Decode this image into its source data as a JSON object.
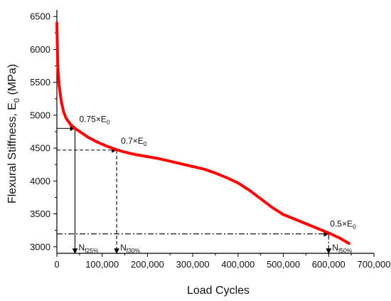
{
  "chart_data": {
    "type": "line",
    "title": "",
    "xlabel": "Load Cycles",
    "ylabel_main": "Flexural Stiffness, E",
    "ylabel_sub": "0",
    "ylabel_unit": " (MPa)",
    "xlim": [
      0,
      700000
    ],
    "ylim": [
      2900,
      6600
    ],
    "xticks": [
      0,
      100000,
      200000,
      300000,
      400000,
      500000,
      600000,
      700000
    ],
    "xtick_labels": [
      "0",
      "100,000",
      "200,000",
      "300,000",
      "400,000",
      "500,000",
      "600,000",
      "700,000"
    ],
    "yticks": [
      3000,
      3500,
      4000,
      4500,
      5000,
      5500,
      6000,
      6500
    ],
    "ytick_labels": [
      "3000",
      "3500",
      "4000",
      "4500",
      "5000",
      "5500",
      "6000",
      "6500"
    ],
    "grid": false,
    "series": [
      {
        "color": "#ff0000",
        "x": [
          0,
          2000,
          5000,
          10000,
          15000,
          20000,
          30000,
          40000,
          55000,
          70000,
          90000,
          110000,
          130000,
          150000,
          175000,
          200000,
          225000,
          250000,
          275000,
          300000,
          325000,
          350000,
          375000,
          400000,
          425000,
          450000,
          475000,
          500000,
          525000,
          550000,
          575000,
          600000,
          625000,
          645000
        ],
        "y": [
          6400,
          5750,
          5450,
          5200,
          5050,
          4960,
          4860,
          4800,
          4730,
          4660,
          4590,
          4530,
          4480,
          4440,
          4400,
          4370,
          4340,
          4300,
          4260,
          4220,
          4180,
          4120,
          4050,
          3970,
          3860,
          3730,
          3600,
          3490,
          3420,
          3350,
          3280,
          3210,
          3130,
          3050
        ]
      }
    ],
    "annotations": [
      {
        "label_main": "0.75×E",
        "label_sub": "0",
        "x": 40000,
        "y": 4800,
        "n_main": "N",
        "n_sub": "f25%",
        "style": "solid"
      },
      {
        "label_main": "0.7×E",
        "label_sub": "0",
        "x": 132000,
        "y": 4470,
        "n_main": "N",
        "n_sub": "f30%",
        "style": "dashed"
      },
      {
        "label_main": "0.5×E",
        "label_sub": "0",
        "x": 600000,
        "y": 3195,
        "n_main": "N",
        "n_sub": "f50%",
        "style": "dashdot"
      }
    ]
  }
}
